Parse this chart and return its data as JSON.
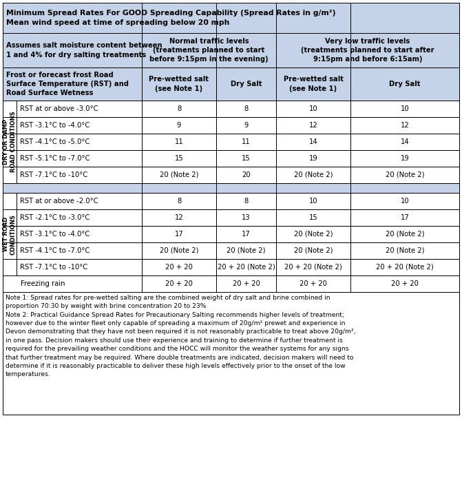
{
  "title_line1": "Minimum Spread Rates For GOOD Spreading Capability (Spread Rates in g/m²)",
  "title_line2": "Mean wind speed at time of spreading below 20 mph",
  "col1_label": "Assumes salt moisture content between\n1 and 4% for dry salting treatments",
  "col23_label": "Normal traffic levels\n(treatments planned to start\nbefore 9:15pm in the evening)",
  "col45_label": "Very low traffic levels\n(treatments planned to start after\n9:15pm and before 6:15am)",
  "subheader_col1": "Frost or forecast frost Road\nSurface Temperature (RST) and\nRoad Surface Wetness",
  "subheader_col2": "Pre-wetted salt\n(see Note 1)",
  "subheader_col3": "Dry Salt",
  "subheader_col4": "Pre-wetted salt\n(see Note 1)",
  "subheader_col5": "Dry Salt",
  "dry_label": "DRY OR DAMP\nROAD CONDITIONS",
  "wet_label": "WET ROAD\nCONDITIONS",
  "dry_rows": [
    [
      "RST at or above -3.0°C",
      "8",
      "8",
      "10",
      "10"
    ],
    [
      "RST -3.1°C to -4.0°C",
      "9",
      "9",
      "12",
      "12"
    ],
    [
      "RST -4.1°C to -5.0°C",
      "11",
      "11",
      "14",
      "14"
    ],
    [
      "RST -5.1°C to -7.0°C",
      "15",
      "15",
      "19",
      "19"
    ],
    [
      "RST -7.1°C to -10°C",
      "20 (Note 2)",
      "20",
      "20 (Note 2)",
      "20 (Note 2)"
    ]
  ],
  "wet_rows": [
    [
      "RST at or above -2.0°C",
      "8",
      "8",
      "10",
      "10"
    ],
    [
      "RST -2.1°C to -3.0°C",
      "12",
      "13",
      "15",
      "17"
    ],
    [
      "RST -3.1°C to -4.0°C",
      "17",
      "17",
      "20 (Note 2)",
      "20 (Note 2)"
    ],
    [
      "RST -4.1°C to -7.0°C",
      "20 (Note 2)",
      "20 (Note 2)",
      "20 (Note 2)",
      "20 (Note 2)"
    ],
    [
      "RST -7.1°C to -10°C",
      "20 + 20",
      "20 + 20 (Note 2)",
      "20 + 20 (Note 2)",
      "20 + 20 (Note 2)"
    ]
  ],
  "freezing_row": [
    "Freezing rain",
    "20 + 20",
    "20 + 20",
    "20 + 20",
    "20 + 20"
  ],
  "note1": "Note 1: Spread rates for pre-wetted salting are the combined weight of dry salt and brine combined in\nproportion 70:30 by weight with brine concentration 20 to 23%",
  "note2": "Note 2: Practical Guidance Spread Rates for Precautionary Salting recommends higher levels of treatment;\nhowever due to the winter fleet only capable of spreading a maximum of 20g/m² prewet and experience in\nDevon demonstrating that they have not been required it is not reasonably practicable to treat above 20g/m²,\nin one pass. Decision makers should use their experience and training to determine if further treatment is\nrequired for the prevailing weather conditions and the HOCC will monitor the weather systems for any signs\nthat further treatment may be required. Where double treatments are indicated, decision makers will need to\ndetermine if it is reasonably practicable to deliver these high levels effectively prior to the onset of the low\ntemperatures.",
  "light_blue": "#c5d3e8",
  "white_bg": "#ffffff",
  "text_dark": "#000000",
  "title_fontsize": 7.8,
  "header_fontsize": 7.2,
  "cell_fontsize": 7.2,
  "note_fontsize": 6.6,
  "sidebar_fontsize": 6.0
}
